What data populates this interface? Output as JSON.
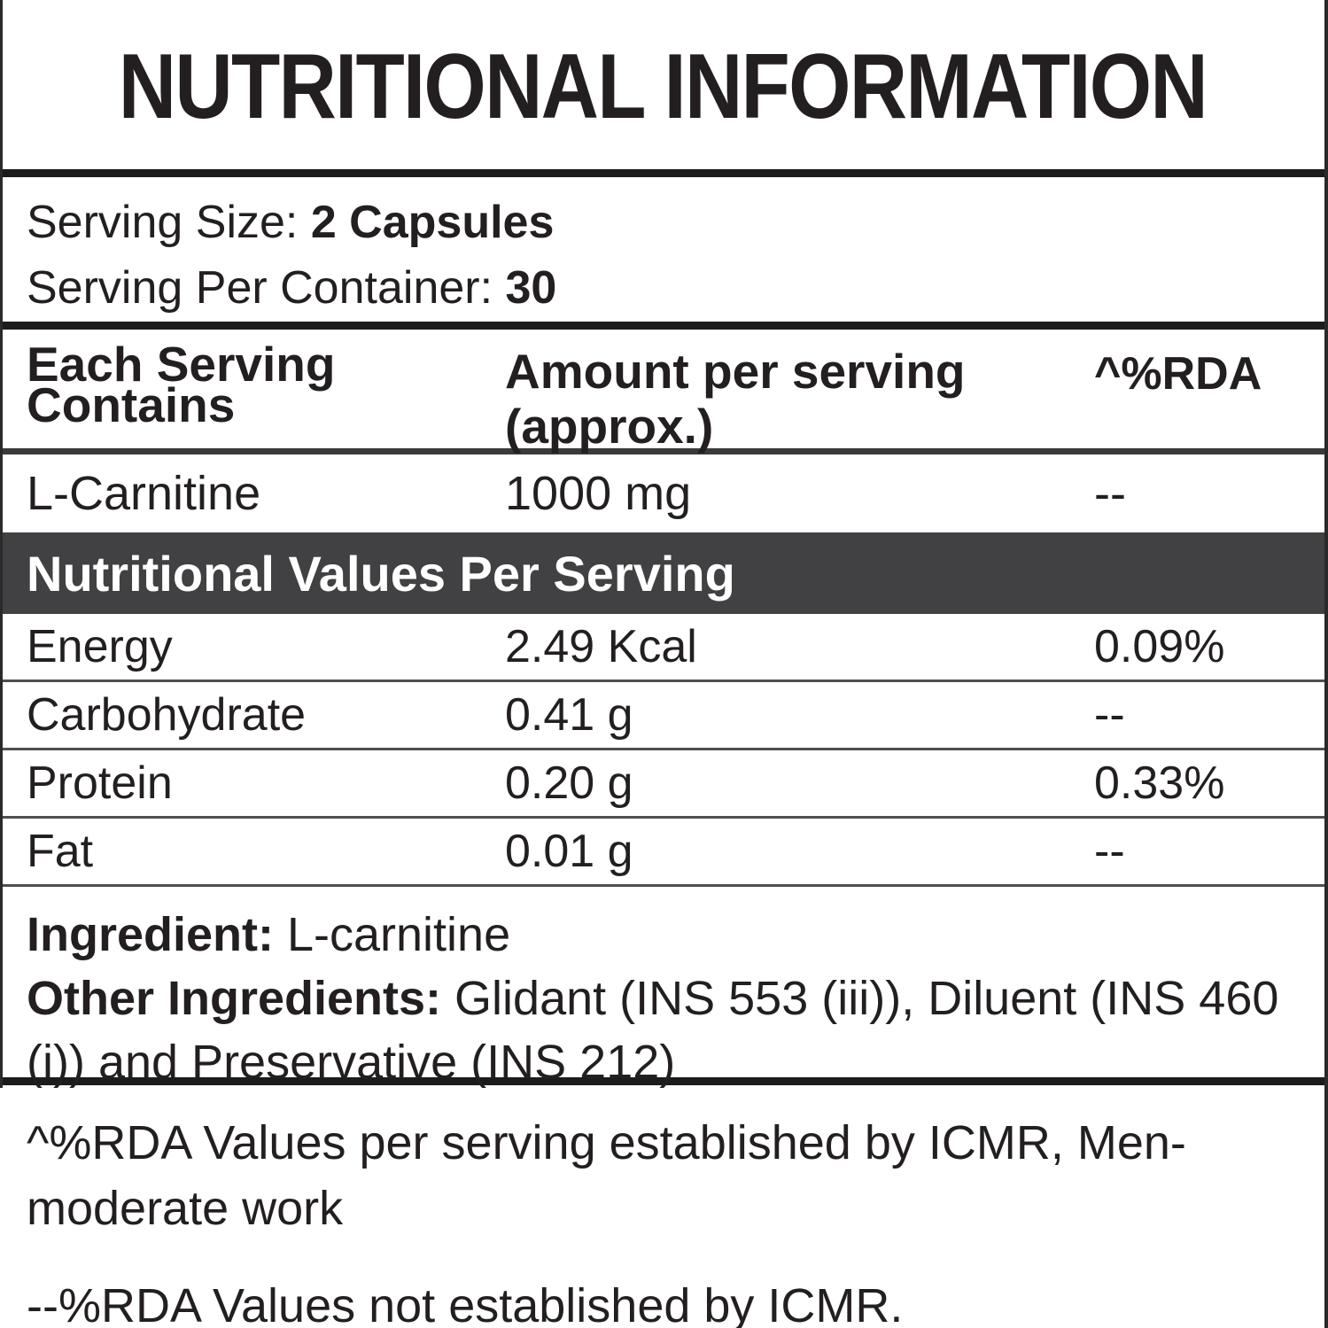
{
  "title": "NUTRITIONAL INFORMATION",
  "serving": {
    "size_label": "Serving Size: ",
    "size_value": "2 Capsules",
    "container_label": "Serving Per Container: ",
    "container_value": "30"
  },
  "table": {
    "header": {
      "col1_line1": "Each Serving",
      "col1_line2": "Contains",
      "col2_line1": "Amount per serving",
      "col2_line2": "(approx.)",
      "col3": "^%RDA"
    },
    "supplement_rows": [
      {
        "name": "L-Carnitine",
        "amount": "1000 mg",
        "rda": "--"
      }
    ],
    "section_header": "Nutritional Values Per Serving",
    "nutrient_rows": [
      {
        "name": "Energy",
        "amount": "2.49 Kcal",
        "rda": "0.09%"
      },
      {
        "name": "Carbohydrate",
        "amount": "0.41 g",
        "rda": "--"
      },
      {
        "name": "Protein",
        "amount": "0.20 g",
        "rda": "0.33%"
      },
      {
        "name": "Fat",
        "amount": "0.01 g",
        "rda": "--"
      }
    ]
  },
  "ingredients": {
    "label": "Ingredient: ",
    "value": "L-carnitine",
    "other_label": "Other Ingredients: ",
    "other_value": "Glidant (INS 553 (iii)), Diluent (INS 460 (i)) and Preservative (INS 212)"
  },
  "footnotes": [
    "^%RDA Values per serving established by ICMR, Men-moderate work",
    "--%RDA Values not established by ICMR."
  ],
  "colors": {
    "text": "#231f20",
    "band_background": "#414143",
    "band_text": "#ffffff",
    "border": "#1c1c1c"
  }
}
